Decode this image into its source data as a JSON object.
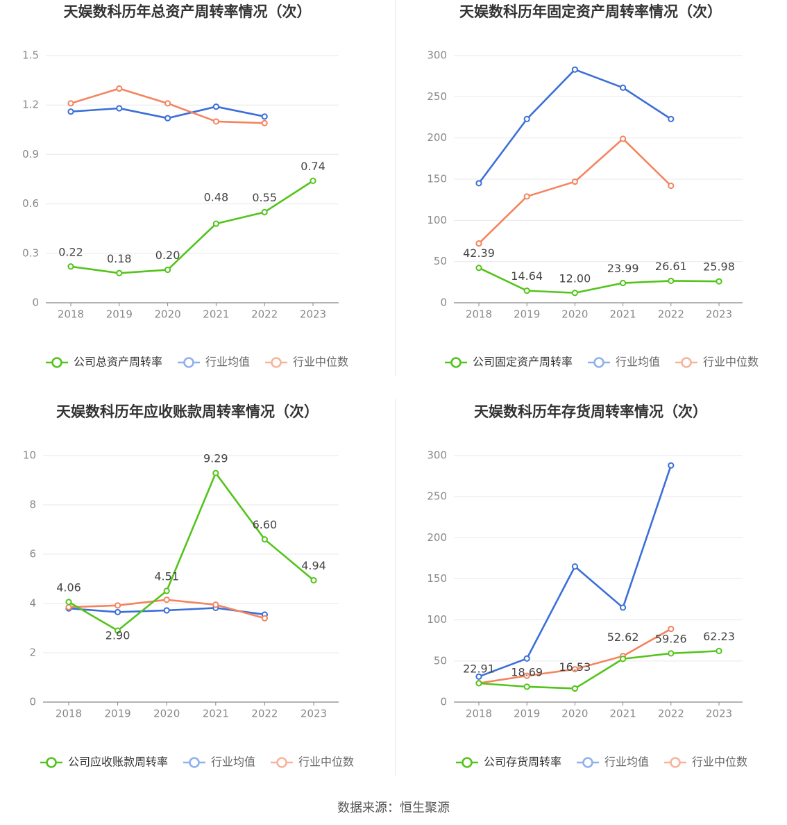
{
  "source_text": "数据来源：恒生聚源",
  "colors": {
    "company": "#52c41a",
    "avg": "#3b6fd8",
    "median": "#f4845f",
    "grid": "#e8e8ee",
    "axis_text": "#888888",
    "title": "#333333"
  },
  "chart_data": [
    {
      "type": "line",
      "title": "天娱数科历年总资产周转率情况（次）",
      "categories": [
        "2018",
        "2019",
        "2020",
        "2021",
        "2022",
        "2023"
      ],
      "ylim": [
        0,
        1.5
      ],
      "yticks": [
        "0",
        "0.3",
        "0.6",
        "0.9",
        "1.2",
        "1.5"
      ],
      "series": [
        {
          "name": "公司总资产周转率",
          "role": "company",
          "values": [
            0.22,
            0.18,
            0.2,
            0.48,
            0.55,
            0.74
          ],
          "labels": [
            "0.22",
            "0.18",
            "0.20",
            "0.48",
            "0.55",
            "0.74"
          ]
        },
        {
          "name": "行业均值",
          "role": "avg",
          "values": [
            1.16,
            1.18,
            1.12,
            1.19,
            1.13,
            null
          ]
        },
        {
          "name": "行业中位数",
          "role": "median",
          "values": [
            1.21,
            1.3,
            1.21,
            1.1,
            1.09,
            null
          ]
        }
      ]
    },
    {
      "type": "line",
      "title": "天娱数科历年固定资产周转率情况（次）",
      "categories": [
        "2018",
        "2019",
        "2020",
        "2021",
        "2022",
        "2023"
      ],
      "ylim": [
        0,
        300
      ],
      "yticks": [
        "0",
        "50",
        "100",
        "150",
        "200",
        "250",
        "300"
      ],
      "series": [
        {
          "name": "公司固定资产周转率",
          "role": "company",
          "values": [
            42.39,
            14.64,
            12.0,
            23.99,
            26.61,
            25.98
          ],
          "labels": [
            "42.39",
            "14.64",
            "12.00",
            "23.99",
            "26.61",
            "25.98"
          ]
        },
        {
          "name": "行业均值",
          "role": "avg",
          "values": [
            145,
            223,
            283,
            261,
            223,
            null
          ]
        },
        {
          "name": "行业中位数",
          "role": "median",
          "values": [
            72,
            129,
            147,
            199,
            142,
            null
          ]
        }
      ]
    },
    {
      "type": "line",
      "title": "天娱数科历年应收账款周转率情况（次）",
      "categories": [
        "2018",
        "2019",
        "2020",
        "2021",
        "2022",
        "2023"
      ],
      "ylim": [
        0,
        10
      ],
      "yticks": [
        "0",
        "2",
        "4",
        "6",
        "8",
        "10"
      ],
      "series": [
        {
          "name": "公司应收账款周转率",
          "role": "company",
          "values": [
            4.06,
            2.9,
            4.51,
            9.29,
            6.6,
            4.94
          ],
          "labels": [
            "4.06",
            "2.90",
            "4.51",
            "9.29",
            "6.60",
            "4.94"
          ]
        },
        {
          "name": "行业均值",
          "role": "avg",
          "values": [
            3.8,
            3.65,
            3.72,
            3.82,
            3.55,
            null
          ]
        },
        {
          "name": "行业中位数",
          "role": "median",
          "values": [
            3.85,
            3.92,
            4.15,
            3.95,
            3.4,
            null
          ]
        }
      ]
    },
    {
      "type": "line",
      "title": "天娱数科历年存货周转率情况（次）",
      "categories": [
        "2018",
        "2019",
        "2020",
        "2021",
        "2022",
        "2023"
      ],
      "ylim": [
        0,
        300
      ],
      "yticks": [
        "0",
        "50",
        "100",
        "150",
        "200",
        "250",
        "300"
      ],
      "series": [
        {
          "name": "公司存货周转率",
          "role": "company",
          "values": [
            22.91,
            18.69,
            16.53,
            52.62,
            59.26,
            62.23
          ],
          "labels": [
            "22.91",
            "18.69",
            "16.53",
            "52.62",
            "59.26",
            "62.23"
          ]
        },
        {
          "name": "行业均值",
          "role": "avg",
          "values": [
            31,
            53,
            165,
            115,
            288,
            null
          ]
        },
        {
          "name": "行业中位数",
          "role": "median",
          "values": [
            23,
            32,
            40,
            56,
            89,
            null
          ]
        }
      ]
    }
  ]
}
